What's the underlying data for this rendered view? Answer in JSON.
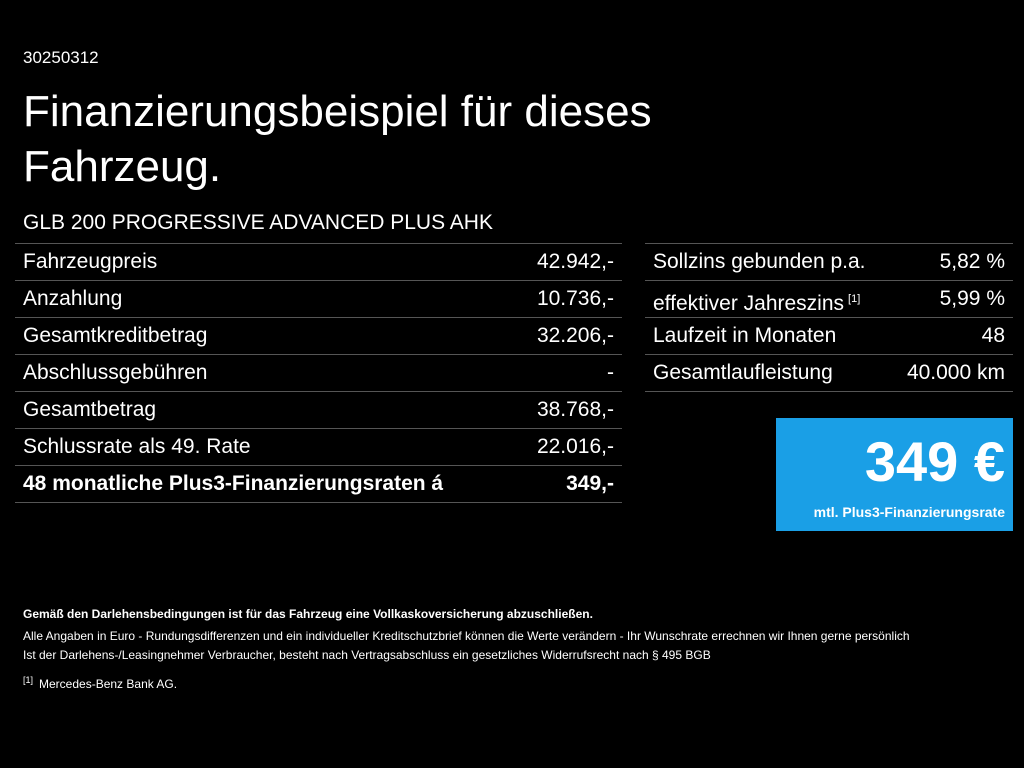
{
  "code": "30250312",
  "title": "Finanzierungsbeispiel für dieses Fahrzeug.",
  "model": "GLB 200 PROGRESSIVE ADVANCED PLUS AHK",
  "left_table": {
    "rows": [
      {
        "label": "Fahrzeugpreis",
        "value": "42.942,-"
      },
      {
        "label": "Anzahlung",
        "value": "10.736,-"
      },
      {
        "label": "Gesamtkreditbetrag",
        "value": "32.206,-"
      },
      {
        "label": "Abschlussgebühren",
        "value": "-"
      },
      {
        "label": "Gesamtbetrag",
        "value": "38.768,-"
      },
      {
        "label": "Schlussrate als 49. Rate",
        "value": "22.016,-"
      },
      {
        "label": "48 monatliche Plus3-Finanzierungsraten á",
        "value": "349,-"
      }
    ]
  },
  "right_table": {
    "rows": [
      {
        "label": "Sollzins gebunden p.a.",
        "value": "5,82 %"
      },
      {
        "label": "effektiver Jahreszins",
        "note": "[1]",
        "value": "5,99 %"
      },
      {
        "label": "Laufzeit in Monaten",
        "value": "48"
      },
      {
        "label": "Gesamtlaufleistung",
        "value": "40.000 km"
      }
    ]
  },
  "rate_box": {
    "amount": "349 €",
    "caption": "mtl. Plus3-Finanzierungsrate"
  },
  "footer": {
    "bold": "Gemäß den Darlehensbedingungen ist für das Fahrzeug eine Vollkaskoversicherung abzuschließen.",
    "lines": [
      "Alle Angaben in Euro - Rundungsdifferenzen und ein individueller Kreditschutzbrief können die Werte verändern - Ihr Wunschrate errechnen wir Ihnen gerne persönlich",
      "Ist der Darlehens-/Leasingnehmer Verbraucher, besteht nach Vertragsabschluss ein gesetzliches Widerrufsrecht nach § 495 BGB"
    ],
    "footnote": {
      "marker": "[1]",
      "text": "Mercedes-Benz Bank AG."
    }
  }
}
